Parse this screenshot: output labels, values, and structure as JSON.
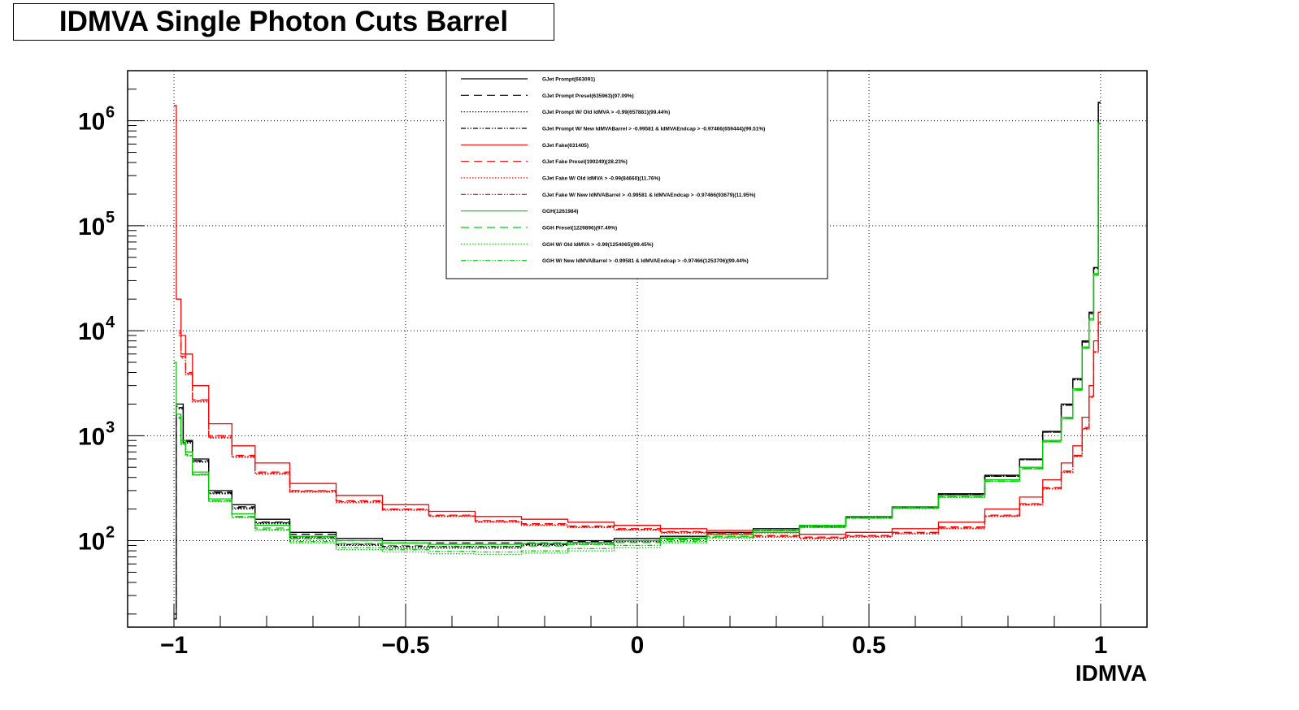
{
  "chart_data": {
    "type": "line",
    "title": "IDMVA Single Photon Cuts Barrel",
    "xlabel": "IDMVA",
    "ylabel": "",
    "xlim": [
      -1.1,
      1.1
    ],
    "ylim": [
      15,
      3000000
    ],
    "yscale": "log",
    "grid": true,
    "legend_position": "top-center",
    "x_ticks": [
      {
        "value": -1,
        "label": "−1"
      },
      {
        "value": -0.5,
        "label": "−0.5"
      },
      {
        "value": 0,
        "label": "0"
      },
      {
        "value": 0.5,
        "label": "0.5"
      },
      {
        "value": 1,
        "label": "1"
      }
    ],
    "y_ticks": [
      {
        "value": 100,
        "base": "10",
        "exp": "2"
      },
      {
        "value": 1000,
        "base": "10",
        "exp": "3"
      },
      {
        "value": 10000,
        "base": "10",
        "exp": "4"
      },
      {
        "value": 100000,
        "base": "10",
        "exp": "5"
      },
      {
        "value": 1000000,
        "base": "10",
        "exp": "6"
      }
    ],
    "series": [
      {
        "name": "GJet Prompt(663091)",
        "color": "#000000",
        "dash": "solid",
        "x": [
          -1.0,
          -0.99,
          -0.97,
          -0.95,
          -0.9,
          -0.85,
          -0.8,
          -0.7,
          -0.6,
          -0.5,
          -0.4,
          -0.3,
          -0.2,
          -0.1,
          0.0,
          0.1,
          0.2,
          0.3,
          0.4,
          0.5,
          0.6,
          0.7,
          0.8,
          0.85,
          0.9,
          0.93,
          0.95,
          0.97,
          0.98,
          0.99,
          1.0
        ],
        "y": [
          20,
          2000,
          900,
          600,
          300,
          220,
          160,
          120,
          105,
          100,
          100,
          100,
          100,
          100,
          105,
          110,
          120,
          130,
          140,
          170,
          210,
          280,
          420,
          600,
          1100,
          2000,
          3500,
          8000,
          15000,
          40000,
          1500000
        ]
      },
      {
        "name": "GJet Prompt Presel(635963)(97.09%)",
        "color": "#000000",
        "dash": "10,6",
        "x": [
          -1.0,
          -0.99,
          -0.97,
          -0.95,
          -0.9,
          -0.85,
          -0.8,
          -0.7,
          -0.6,
          -0.5,
          -0.4,
          -0.3,
          -0.2,
          -0.1,
          0.0,
          0.1,
          0.2,
          0.3,
          0.4,
          0.5,
          0.6,
          0.7,
          0.8,
          0.85,
          0.9,
          0.93,
          0.95,
          0.97,
          0.98,
          0.99,
          1.0
        ],
        "y": [
          18,
          1900,
          880,
          580,
          290,
          210,
          150,
          115,
          100,
          95,
          95,
          95,
          95,
          98,
          100,
          105,
          115,
          125,
          135,
          165,
          205,
          275,
          410,
          590,
          1080,
          1950,
          3400,
          7800,
          14500,
          39000,
          1450000
        ]
      },
      {
        "name": "GJet Prompt W/ Old IdMVA > -0.99(657881)(99.44%)",
        "color": "#000000",
        "dash": "1.5,2",
        "x": [
          -0.99,
          -0.97,
          -0.95,
          -0.9,
          -0.85,
          -0.8,
          -0.7,
          -0.6,
          -0.5,
          -0.4,
          -0.3,
          -0.2,
          -0.1,
          0.0,
          0.1,
          0.2,
          0.3,
          0.4,
          0.5,
          0.6,
          0.7,
          0.8,
          0.85,
          0.9,
          0.93,
          0.95,
          0.97,
          0.98,
          0.99,
          1.0
        ],
        "y": [
          1800,
          850,
          560,
          280,
          200,
          145,
          105,
          90,
          85,
          85,
          85,
          90,
          92,
          98,
          105,
          115,
          125,
          135,
          165,
          205,
          275,
          410,
          590,
          1080,
          1950,
          3400,
          7800,
          14500,
          39000,
          1480000
        ]
      },
      {
        "name": "GJet Prompt W/ New IdMVABarrel > -0.99581 & IdMVAEndcap > -0.97466(659444)(99.51%)",
        "color": "#000000",
        "dash": "6,2,1.5,2,1.5,2",
        "x": [
          -0.99,
          -0.97,
          -0.95,
          -0.9,
          -0.85,
          -0.8,
          -0.7,
          -0.6,
          -0.5,
          -0.4,
          -0.3,
          -0.2,
          -0.1,
          0.0,
          0.1,
          0.2,
          0.3,
          0.4,
          0.5,
          0.6,
          0.7,
          0.8,
          0.85,
          0.9,
          0.93,
          0.95,
          0.97,
          0.98,
          0.99,
          1.0
        ],
        "y": [
          1850,
          860,
          570,
          285,
          205,
          148,
          108,
          92,
          88,
          88,
          88,
          92,
          95,
          100,
          106,
          116,
          126,
          136,
          166,
          206,
          276,
          412,
          592,
          1085,
          1960,
          3420,
          7850,
          14600,
          39500,
          1490000
        ]
      },
      {
        "name": "GJet Fake(631405)",
        "color": "#ff0000",
        "dash": "solid",
        "x": [
          -1.0,
          -0.99,
          -0.98,
          -0.97,
          -0.95,
          -0.9,
          -0.85,
          -0.8,
          -0.7,
          -0.6,
          -0.5,
          -0.4,
          -0.3,
          -0.2,
          -0.1,
          0.0,
          0.1,
          0.2,
          0.3,
          0.4,
          0.5,
          0.6,
          0.7,
          0.8,
          0.85,
          0.9,
          0.93,
          0.95,
          0.97,
          0.98,
          0.99,
          1.0
        ],
        "y": [
          1400000,
          20000,
          9000,
          6000,
          3000,
          1300,
          800,
          550,
          350,
          270,
          220,
          190,
          170,
          160,
          150,
          140,
          130,
          125,
          120,
          115,
          120,
          130,
          150,
          200,
          260,
          380,
          550,
          800,
          1500,
          3000,
          8000,
          15000
        ]
      },
      {
        "name": "GJet Fake Presel(190249)(28.23%)",
        "color": "#ff0000",
        "dash": "10,6",
        "x": [
          -0.99,
          -0.98,
          -0.97,
          -0.95,
          -0.9,
          -0.85,
          -0.8,
          -0.7,
          -0.6,
          -0.5,
          -0.4,
          -0.3,
          -0.2,
          -0.1,
          0.0,
          0.1,
          0.2,
          0.3,
          0.4,
          0.5,
          0.6,
          0.7,
          0.8,
          0.85,
          0.9,
          0.93,
          0.95,
          0.97,
          0.98,
          0.99,
          1.0
        ],
        "y": [
          10000,
          6000,
          4000,
          2200,
          1000,
          650,
          450,
          300,
          240,
          200,
          175,
          155,
          145,
          138,
          130,
          122,
          118,
          112,
          108,
          112,
          120,
          135,
          175,
          225,
          320,
          460,
          650,
          1200,
          2400,
          6500,
          12000
        ]
      },
      {
        "name": "GJet Fake W/ Old IdMVA > -0.99(84660)(11.76%)",
        "color": "#ff0000",
        "dash": "1.5,2",
        "x": [
          -0.99,
          -0.98,
          -0.97,
          -0.95,
          -0.9,
          -0.85,
          -0.8,
          -0.7,
          -0.6,
          -0.5,
          -0.4,
          -0.3,
          -0.2,
          -0.1,
          0.0,
          0.1,
          0.2,
          0.3,
          0.4,
          0.5,
          0.6,
          0.7,
          0.8,
          0.85,
          0.9,
          0.93,
          0.95,
          0.97,
          0.98,
          0.99,
          1.0
        ],
        "y": [
          9000,
          5500,
          3800,
          2100,
          950,
          620,
          430,
          290,
          230,
          195,
          170,
          150,
          140,
          133,
          126,
          118,
          114,
          108,
          104,
          108,
          116,
          130,
          170,
          218,
          310,
          445,
          630,
          1150,
          2300,
          6200,
          11500
        ]
      },
      {
        "name": "GJet Fake W/ New IdMVABarrel > -0.99581 & IdMVAEndcap > -0.97466(93679)(11.95%)",
        "color": "#ff0000",
        "dash": "6,2,1.5,2,1.5,2",
        "x": [
          -0.99,
          -0.98,
          -0.97,
          -0.95,
          -0.9,
          -0.85,
          -0.8,
          -0.7,
          -0.6,
          -0.5,
          -0.4,
          -0.3,
          -0.2,
          -0.1,
          0.0,
          0.1,
          0.2,
          0.3,
          0.4,
          0.5,
          0.6,
          0.7,
          0.8,
          0.85,
          0.9,
          0.93,
          0.95,
          0.97,
          0.98,
          0.99,
          1.0
        ],
        "y": [
          9500,
          5700,
          3900,
          2150,
          970,
          635,
          440,
          295,
          235,
          198,
          172,
          152,
          142,
          135,
          128,
          120,
          116,
          110,
          106,
          110,
          118,
          132,
          172,
          222,
          315,
          452,
          640,
          1170,
          2350,
          6300,
          11800
        ]
      },
      {
        "name": "GGH(1261984)",
        "color": "#00cc00",
        "dash": "solid",
        "x": [
          -1.0,
          -0.99,
          -0.98,
          -0.97,
          -0.95,
          -0.9,
          -0.85,
          -0.8,
          -0.7,
          -0.6,
          -0.5,
          -0.4,
          -0.3,
          -0.2,
          -0.1,
          0.0,
          0.1,
          0.2,
          0.3,
          0.4,
          0.5,
          0.6,
          0.7,
          0.8,
          0.85,
          0.9,
          0.93,
          0.95,
          0.97,
          0.98,
          0.99,
          1.0
        ],
        "y": [
          5000,
          1600,
          900,
          700,
          450,
          250,
          180,
          140,
          110,
          100,
          95,
          92,
          92,
          94,
          96,
          100,
          106,
          115,
          125,
          140,
          170,
          210,
          270,
          380,
          500,
          900,
          1500,
          2800,
          7000,
          13000,
          35000,
          950000
        ]
      },
      {
        "name": "GGH Presel(1229896)(97.49%)",
        "color": "#00cc00",
        "dash": "10,6",
        "x": [
          -0.99,
          -0.98,
          -0.97,
          -0.95,
          -0.9,
          -0.85,
          -0.8,
          -0.7,
          -0.6,
          -0.5,
          -0.4,
          -0.3,
          -0.2,
          -0.1,
          0.0,
          0.1,
          0.2,
          0.3,
          0.4,
          0.5,
          0.6,
          0.7,
          0.8,
          0.85,
          0.9,
          0.93,
          0.95,
          0.97,
          0.98,
          0.99,
          1.0
        ],
        "y": [
          1500,
          850,
          660,
          430,
          240,
          170,
          132,
          104,
          94,
          90,
          87,
          87,
          89,
          92,
          96,
          102,
          110,
          120,
          135,
          165,
          205,
          262,
          370,
          488,
          880,
          1460,
          2740,
          6850,
          12700,
          34000,
          930000
        ]
      },
      {
        "name": "GGH W/ Old IdMVA > -0.99(1254065)(99.45%)",
        "color": "#00cc00",
        "dash": "1.5,2",
        "x": [
          -0.99,
          -0.98,
          -0.97,
          -0.95,
          -0.9,
          -0.85,
          -0.8,
          -0.7,
          -0.6,
          -0.5,
          -0.4,
          -0.3,
          -0.2,
          -0.1,
          0.0,
          0.1,
          0.2,
          0.3,
          0.4,
          0.5,
          0.6,
          0.7,
          0.8,
          0.85,
          0.9,
          0.93,
          0.95,
          0.97,
          0.98,
          0.99,
          1.0
        ],
        "y": [
          1450,
          820,
          640,
          420,
          235,
          165,
          125,
          95,
          82,
          78,
          75,
          74,
          76,
          80,
          86,
          95,
          106,
          118,
          133,
          163,
          202,
          258,
          365,
          480,
          870,
          1440,
          2700,
          6800,
          12600,
          33500,
          945000
        ]
      },
      {
        "name": "GGH W/ New IdMVABarrel > -0.99581 & IdMVAEndcap > -0.97466(1253706)(99.44%)",
        "color": "#00cc00",
        "dash": "6,2,1.5,2,1.5,2",
        "x": [
          -0.99,
          -0.98,
          -0.97,
          -0.95,
          -0.9,
          -0.85,
          -0.8,
          -0.7,
          -0.6,
          -0.5,
          -0.4,
          -0.3,
          -0.2,
          -0.1,
          0.0,
          0.1,
          0.2,
          0.3,
          0.4,
          0.5,
          0.6,
          0.7,
          0.8,
          0.85,
          0.9,
          0.93,
          0.95,
          0.97,
          0.98,
          0.99,
          1.0
        ],
        "y": [
          1480,
          830,
          650,
          425,
          238,
          168,
          128,
          98,
          86,
          82,
          79,
          78,
          80,
          84,
          90,
          98,
          108,
          120,
          134,
          164,
          204,
          260,
          368,
          484,
          875,
          1450,
          2720,
          6820,
          12650,
          33800,
          940000
        ]
      }
    ]
  }
}
